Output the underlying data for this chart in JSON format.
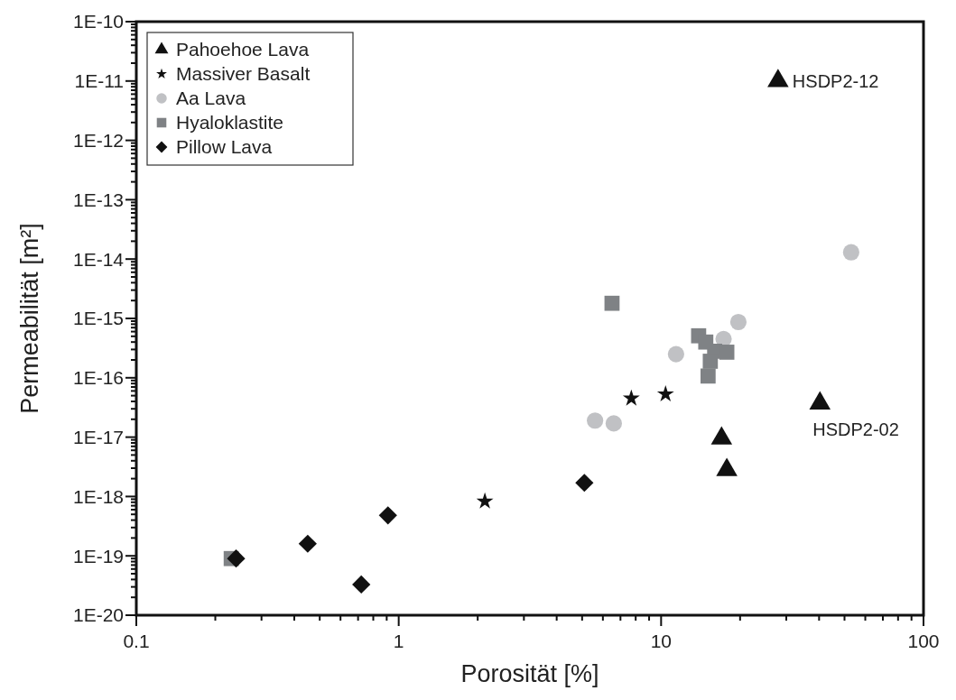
{
  "chart_data": {
    "type": "scatter",
    "xlabel": "Porosität [%]",
    "ylabel": "Permeabilität [m²]",
    "log": "xy",
    "grid": false,
    "legend": "top left",
    "xlim": [
      0.1,
      100
    ],
    "xticks": [
      0.1,
      1,
      10,
      100
    ],
    "ylim": [
      1e-20,
      1e-10
    ],
    "yticks": [
      {
        "value": 1e-20,
        "label": "1E-20"
      },
      {
        "value": 1e-19,
        "label": "1E-19"
      },
      {
        "value": 1e-18,
        "label": "1E-18"
      },
      {
        "value": 1e-17,
        "label": "1E-17"
      },
      {
        "value": 1e-16,
        "label": "1E-16"
      },
      {
        "value": 1e-15,
        "label": "1E-15"
      },
      {
        "value": 1e-14,
        "label": "1E-14"
      },
      {
        "value": 1e-13,
        "label": "1E-13"
      },
      {
        "value": 1e-12,
        "label": "1E-12"
      },
      {
        "value": 1e-11,
        "label": "1E-11"
      },
      {
        "value": 1e-10,
        "label": "1E-10"
      }
    ],
    "series": [
      {
        "name": "Pahoehoe Lava",
        "color": "#111111",
        "marker": "triangle",
        "x": [
          27.9,
          40.3,
          17,
          17.8
        ],
        "values": [
          1e-11,
          3.7e-17,
          9.5e-18,
          2.8e-18
        ]
      },
      {
        "name": "Massiver Basalt",
        "color": "#111111",
        "marker": "star",
        "x": [
          2.13,
          7.7,
          10.4
        ],
        "values": [
          8.3e-19,
          4.5e-17,
          5.3e-17
        ]
      },
      {
        "name": "Aa Lava",
        "color": "#c0c1c4",
        "marker": "circle",
        "x": [
          53,
          19.7,
          17.3,
          11.4,
          5.6,
          6.6
        ],
        "values": [
          1.3e-14,
          8.7e-16,
          4.5e-16,
          2.5e-16,
          1.9e-17,
          1.7e-17
        ]
      },
      {
        "name": "Hyaloklastite",
        "color": "#7f8285",
        "marker": "square",
        "x": [
          6.5,
          13.9,
          14.8,
          16,
          17.8,
          15.4,
          15.1,
          0.23
        ],
        "values": [
          1.8e-15,
          5.1e-16,
          4e-16,
          2.8e-16,
          2.7e-16,
          1.9e-16,
          1.07e-16,
          9e-20
        ]
      },
      {
        "name": "Pillow Lava",
        "color": "#111111",
        "marker": "diamond",
        "x": [
          0.24,
          0.45,
          0.72,
          0.91,
          5.1
        ],
        "values": [
          9e-20,
          1.6e-19,
          3.3e-20,
          4.8e-19,
          1.7e-18
        ]
      }
    ],
    "annotations": [
      {
        "text": "HSDP2-12",
        "x": 27.9,
        "y": 1e-11
      },
      {
        "text": "HSDP2-02",
        "x": 40.3,
        "y": 3.7e-17
      }
    ]
  }
}
